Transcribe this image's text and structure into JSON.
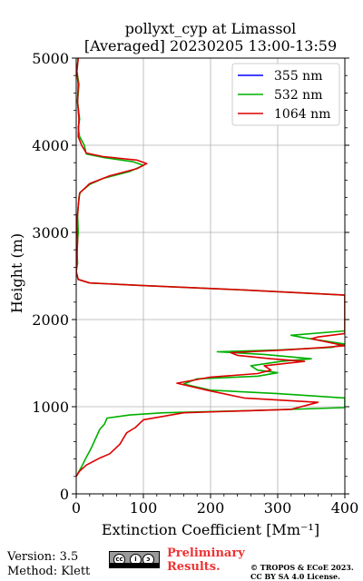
{
  "title": "pollyxt_cyp at Limassol",
  "subtitle": "[Averaged] 20230205 13:00-13:59",
  "footer": {
    "version": "Version: 3.5",
    "method": "Method: Klett",
    "preliminary": [
      "Preliminary",
      "Results."
    ],
    "copyright": [
      "© TROPOS & ECoE 2023.",
      "CC BY SA 4.0 License."
    ],
    "license_icon": "cc-by-sa-icon"
  },
  "chart_data": {
    "type": "line",
    "title": "pollyxt_cyp at Limassol",
    "subtitle": "[Averaged] 20230205 13:00-13:59",
    "xlabel": "Extinction Coefficient [Mm⁻¹]",
    "ylabel": "Height (m)",
    "xlim": [
      0,
      400
    ],
    "ylim": [
      0,
      5000
    ],
    "xticks": [
      0,
      100,
      200,
      300,
      400
    ],
    "yticks": [
      0,
      1000,
      2000,
      3000,
      4000,
      5000
    ],
    "grid": true,
    "legend_position": "top-right",
    "series": [
      {
        "name": "355 nm",
        "color": "#0000ff",
        "points": []
      },
      {
        "name": "532 nm",
        "color": "#00b000",
        "points": [
          [
            2,
            230
          ],
          [
            8,
            310
          ],
          [
            15,
            420
          ],
          [
            22,
            520
          ],
          [
            28,
            620
          ],
          [
            35,
            740
          ],
          [
            42,
            800
          ],
          [
            46,
            870
          ],
          [
            80,
            905
          ],
          [
            130,
            930
          ],
          [
            260,
            955
          ],
          [
            400,
            990
          ],
          [
            400,
            1100
          ],
          [
            300,
            1150
          ],
          [
            200,
            1190
          ],
          [
            160,
            1260
          ],
          [
            180,
            1320
          ],
          [
            270,
            1350
          ],
          [
            300,
            1390
          ],
          [
            270,
            1420
          ],
          [
            260,
            1470
          ],
          [
            305,
            1520
          ],
          [
            350,
            1550
          ],
          [
            280,
            1600
          ],
          [
            210,
            1630
          ],
          [
            300,
            1650
          ],
          [
            380,
            1680
          ],
          [
            400,
            1720
          ],
          [
            340,
            1790
          ],
          [
            320,
            1820
          ],
          [
            400,
            1870
          ],
          [
            400,
            1990
          ],
          [
            400,
            2280
          ],
          [
            250,
            2340
          ],
          [
            100,
            2390
          ],
          [
            20,
            2420
          ],
          [
            3,
            2460
          ],
          [
            0,
            2550
          ],
          [
            2,
            2650
          ],
          [
            1,
            2800
          ],
          [
            3,
            3000
          ],
          [
            2,
            3200
          ],
          [
            4,
            3400
          ],
          [
            6,
            3460
          ],
          [
            20,
            3550
          ],
          [
            40,
            3620
          ],
          [
            80,
            3700
          ],
          [
            100,
            3770
          ],
          [
            85,
            3810
          ],
          [
            40,
            3860
          ],
          [
            15,
            3900
          ],
          [
            12,
            4000
          ],
          [
            5,
            4100
          ],
          [
            3,
            4200
          ],
          [
            5,
            4300
          ],
          [
            2,
            4500
          ],
          [
            4,
            4700
          ],
          [
            1,
            4850
          ],
          [
            3,
            5000
          ]
        ]
      },
      {
        "name": "1064 nm",
        "color": "#dd0000",
        "points": [
          [
            0,
            200
          ],
          [
            5,
            260
          ],
          [
            15,
            330
          ],
          [
            35,
            410
          ],
          [
            50,
            460
          ],
          [
            65,
            570
          ],
          [
            75,
            700
          ],
          [
            88,
            760
          ],
          [
            100,
            850
          ],
          [
            160,
            930
          ],
          [
            320,
            970
          ],
          [
            360,
            1050
          ],
          [
            250,
            1100
          ],
          [
            200,
            1180
          ],
          [
            150,
            1270
          ],
          [
            200,
            1340
          ],
          [
            270,
            1380
          ],
          [
            290,
            1420
          ],
          [
            280,
            1470
          ],
          [
            340,
            1520
          ],
          [
            290,
            1550
          ],
          [
            240,
            1590
          ],
          [
            230,
            1620
          ],
          [
            310,
            1650
          ],
          [
            370,
            1680
          ],
          [
            400,
            1700
          ],
          [
            350,
            1780
          ],
          [
            360,
            1800
          ],
          [
            400,
            1840
          ],
          [
            400,
            2000
          ],
          [
            400,
            2280
          ],
          [
            250,
            2340
          ],
          [
            100,
            2390
          ],
          [
            20,
            2420
          ],
          [
            3,
            2460
          ],
          [
            0,
            2550
          ],
          [
            1,
            2700
          ],
          [
            2,
            2900
          ],
          [
            1,
            3100
          ],
          [
            3,
            3300
          ],
          [
            5,
            3450
          ],
          [
            20,
            3560
          ],
          [
            50,
            3650
          ],
          [
            90,
            3730
          ],
          [
            105,
            3790
          ],
          [
            90,
            3830
          ],
          [
            40,
            3870
          ],
          [
            15,
            3910
          ],
          [
            8,
            4000
          ],
          [
            3,
            4100
          ],
          [
            4,
            4300
          ],
          [
            2,
            4500
          ],
          [
            3,
            4700
          ],
          [
            1,
            4850
          ],
          [
            3,
            5000
          ]
        ]
      }
    ]
  }
}
